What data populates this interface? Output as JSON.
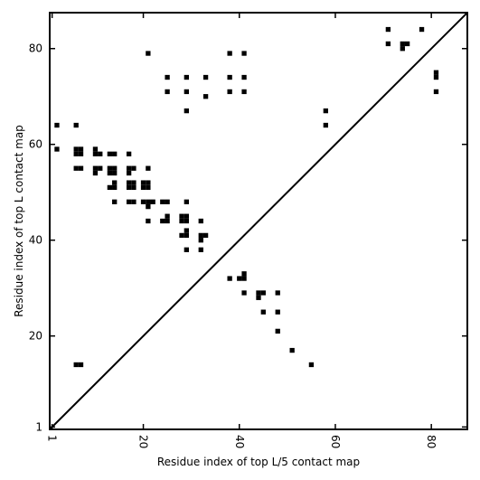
{
  "chart_data": {
    "type": "scatter",
    "xlabel": "Residue index of top L/5 contact map",
    "ylabel": "Residue index of top L contact map",
    "xlim": [
      0.5,
      87.5
    ],
    "ylim": [
      0.5,
      87.5
    ],
    "xticks": [
      1,
      20,
      40,
      60,
      80
    ],
    "yticks": [
      1,
      20,
      40,
      60,
      80
    ],
    "x_tick_labels": [
      "1",
      "20",
      "40",
      "60",
      "80"
    ],
    "y_tick_labels": [
      "1",
      "20",
      "40",
      "60",
      "80"
    ],
    "diagonal_line": true,
    "grid": false,
    "marker": "square",
    "color": "#000000",
    "points": [
      [
        71,
        84
      ],
      [
        78,
        84
      ],
      [
        71,
        81
      ],
      [
        74,
        81
      ],
      [
        75,
        81
      ],
      [
        74,
        80
      ],
      [
        81,
        75
      ],
      [
        81,
        74
      ],
      [
        81,
        71
      ],
      [
        21,
        79
      ],
      [
        38,
        79
      ],
      [
        41,
        79
      ],
      [
        25,
        74
      ],
      [
        29,
        74
      ],
      [
        33,
        74
      ],
      [
        38,
        74
      ],
      [
        41,
        74
      ],
      [
        25,
        71
      ],
      [
        29,
        71
      ],
      [
        38,
        71
      ],
      [
        41,
        71
      ],
      [
        33,
        70
      ],
      [
        29,
        67
      ],
      [
        58,
        67
      ],
      [
        58,
        64
      ],
      [
        2,
        64
      ],
      [
        6,
        64
      ],
      [
        2,
        59
      ],
      [
        6,
        59
      ],
      [
        7,
        59
      ],
      [
        6,
        58
      ],
      [
        7,
        58
      ],
      [
        10,
        59
      ],
      [
        10,
        58
      ],
      [
        11,
        58
      ],
      [
        13,
        58
      ],
      [
        14,
        58
      ],
      [
        17,
        58
      ],
      [
        6,
        55
      ],
      [
        7,
        55
      ],
      [
        10,
        55
      ],
      [
        11,
        55
      ],
      [
        10,
        54
      ],
      [
        13,
        55
      ],
      [
        14,
        55
      ],
      [
        13,
        54
      ],
      [
        14,
        54
      ],
      [
        17,
        55
      ],
      [
        18,
        55
      ],
      [
        17,
        54
      ],
      [
        21,
        55
      ],
      [
        14,
        52
      ],
      [
        17,
        52
      ],
      [
        18,
        52
      ],
      [
        13,
        51
      ],
      [
        14,
        51
      ],
      [
        17,
        51
      ],
      [
        18,
        51
      ],
      [
        20,
        52
      ],
      [
        21,
        52
      ],
      [
        20,
        51
      ],
      [
        21,
        51
      ],
      [
        14,
        48
      ],
      [
        17,
        48
      ],
      [
        18,
        48
      ],
      [
        20,
        48
      ],
      [
        21,
        48
      ],
      [
        22,
        48
      ],
      [
        24,
        48
      ],
      [
        25,
        48
      ],
      [
        29,
        48
      ],
      [
        21,
        47
      ],
      [
        21,
        44
      ],
      [
        24,
        44
      ],
      [
        25,
        45
      ],
      [
        25,
        44
      ],
      [
        28,
        45
      ],
      [
        29,
        45
      ],
      [
        28,
        44
      ],
      [
        29,
        44
      ],
      [
        32,
        44
      ],
      [
        29,
        42
      ],
      [
        28,
        41
      ],
      [
        29,
        41
      ],
      [
        32,
        41
      ],
      [
        33,
        41
      ],
      [
        32,
        40
      ],
      [
        29,
        38
      ],
      [
        32,
        38
      ],
      [
        41,
        33
      ],
      [
        38,
        32
      ],
      [
        40,
        32
      ],
      [
        41,
        32
      ],
      [
        41,
        29
      ],
      [
        44,
        29
      ],
      [
        45,
        29
      ],
      [
        48,
        29
      ],
      [
        44,
        28
      ],
      [
        45,
        25
      ],
      [
        48,
        25
      ],
      [
        48,
        21
      ],
      [
        51,
        17
      ],
      [
        6,
        14
      ],
      [
        7,
        14
      ],
      [
        55,
        14
      ]
    ]
  }
}
